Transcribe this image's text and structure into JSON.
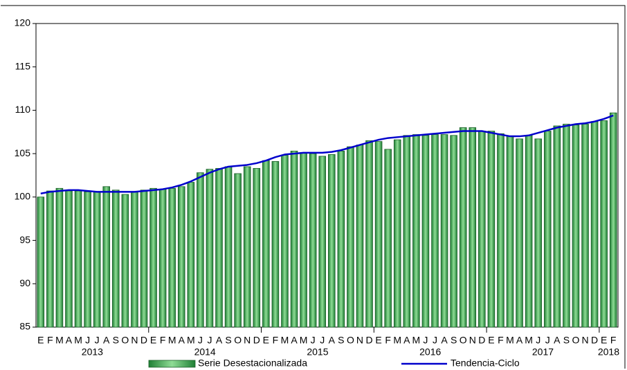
{
  "chart_data": {
    "type": "bar",
    "categories": [
      "E",
      "F",
      "M",
      "A",
      "M",
      "J",
      "J",
      "A",
      "S",
      "O",
      "N",
      "D",
      "E",
      "F",
      "M",
      "A",
      "M",
      "J",
      "J",
      "A",
      "S",
      "O",
      "N",
      "D",
      "E",
      "F",
      "M",
      "A",
      "M",
      "J",
      "J",
      "A",
      "S",
      "O",
      "N",
      "D",
      "E",
      "F",
      "M",
      "A",
      "M",
      "J",
      "J",
      "A",
      "S",
      "O",
      "N",
      "D",
      "E",
      "F",
      "M",
      "A",
      "M",
      "J",
      "J",
      "A",
      "S",
      "O",
      "N",
      "D",
      "E",
      "F"
    ],
    "year_labels": [
      "2013",
      "2014",
      "2015",
      "2016",
      "2017",
      "2018"
    ],
    "series": [
      {
        "name": "Serie Desestacionalizada",
        "type": "bar",
        "color": "#2e9a44",
        "values": [
          100.0,
          100.7,
          101.0,
          100.7,
          100.7,
          100.6,
          100.6,
          101.2,
          100.8,
          100.3,
          100.6,
          100.8,
          101.0,
          100.9,
          101.0,
          101.2,
          101.7,
          102.8,
          103.2,
          103.3,
          103.5,
          102.7,
          103.5,
          103.3,
          104.2,
          104.1,
          104.8,
          105.3,
          105.1,
          105.0,
          104.7,
          104.9,
          105.3,
          105.8,
          106.0,
          106.5,
          106.4,
          105.5,
          106.6,
          107.1,
          107.2,
          107.1,
          107.2,
          107.2,
          107.1,
          108.0,
          108.0,
          107.6,
          107.6,
          107.3,
          107.0,
          106.7,
          107.1,
          106.7,
          107.6,
          108.2,
          108.4,
          108.3,
          108.4,
          108.7,
          108.8,
          109.7
        ]
      },
      {
        "name": "Tendencia-Ciclo",
        "type": "line",
        "color": "#0000cc",
        "values": [
          100.4,
          100.6,
          100.7,
          100.8,
          100.8,
          100.7,
          100.6,
          100.6,
          100.6,
          100.6,
          100.6,
          100.7,
          100.8,
          100.9,
          101.1,
          101.4,
          101.8,
          102.3,
          102.8,
          103.2,
          103.5,
          103.6,
          103.7,
          103.9,
          104.2,
          104.6,
          104.9,
          105.0,
          105.1,
          105.1,
          105.1,
          105.2,
          105.4,
          105.7,
          106.0,
          106.3,
          106.6,
          106.8,
          106.9,
          107.0,
          107.1,
          107.2,
          107.3,
          107.4,
          107.5,
          107.6,
          107.6,
          107.6,
          107.4,
          107.2,
          107.0,
          107.0,
          107.1,
          107.4,
          107.7,
          108.0,
          108.2,
          108.4,
          108.5,
          108.7,
          109.0,
          109.4
        ]
      }
    ],
    "ylim": [
      85,
      120
    ],
    "yticks": [
      85,
      90,
      95,
      100,
      105,
      110,
      115,
      120
    ],
    "grid": false
  }
}
